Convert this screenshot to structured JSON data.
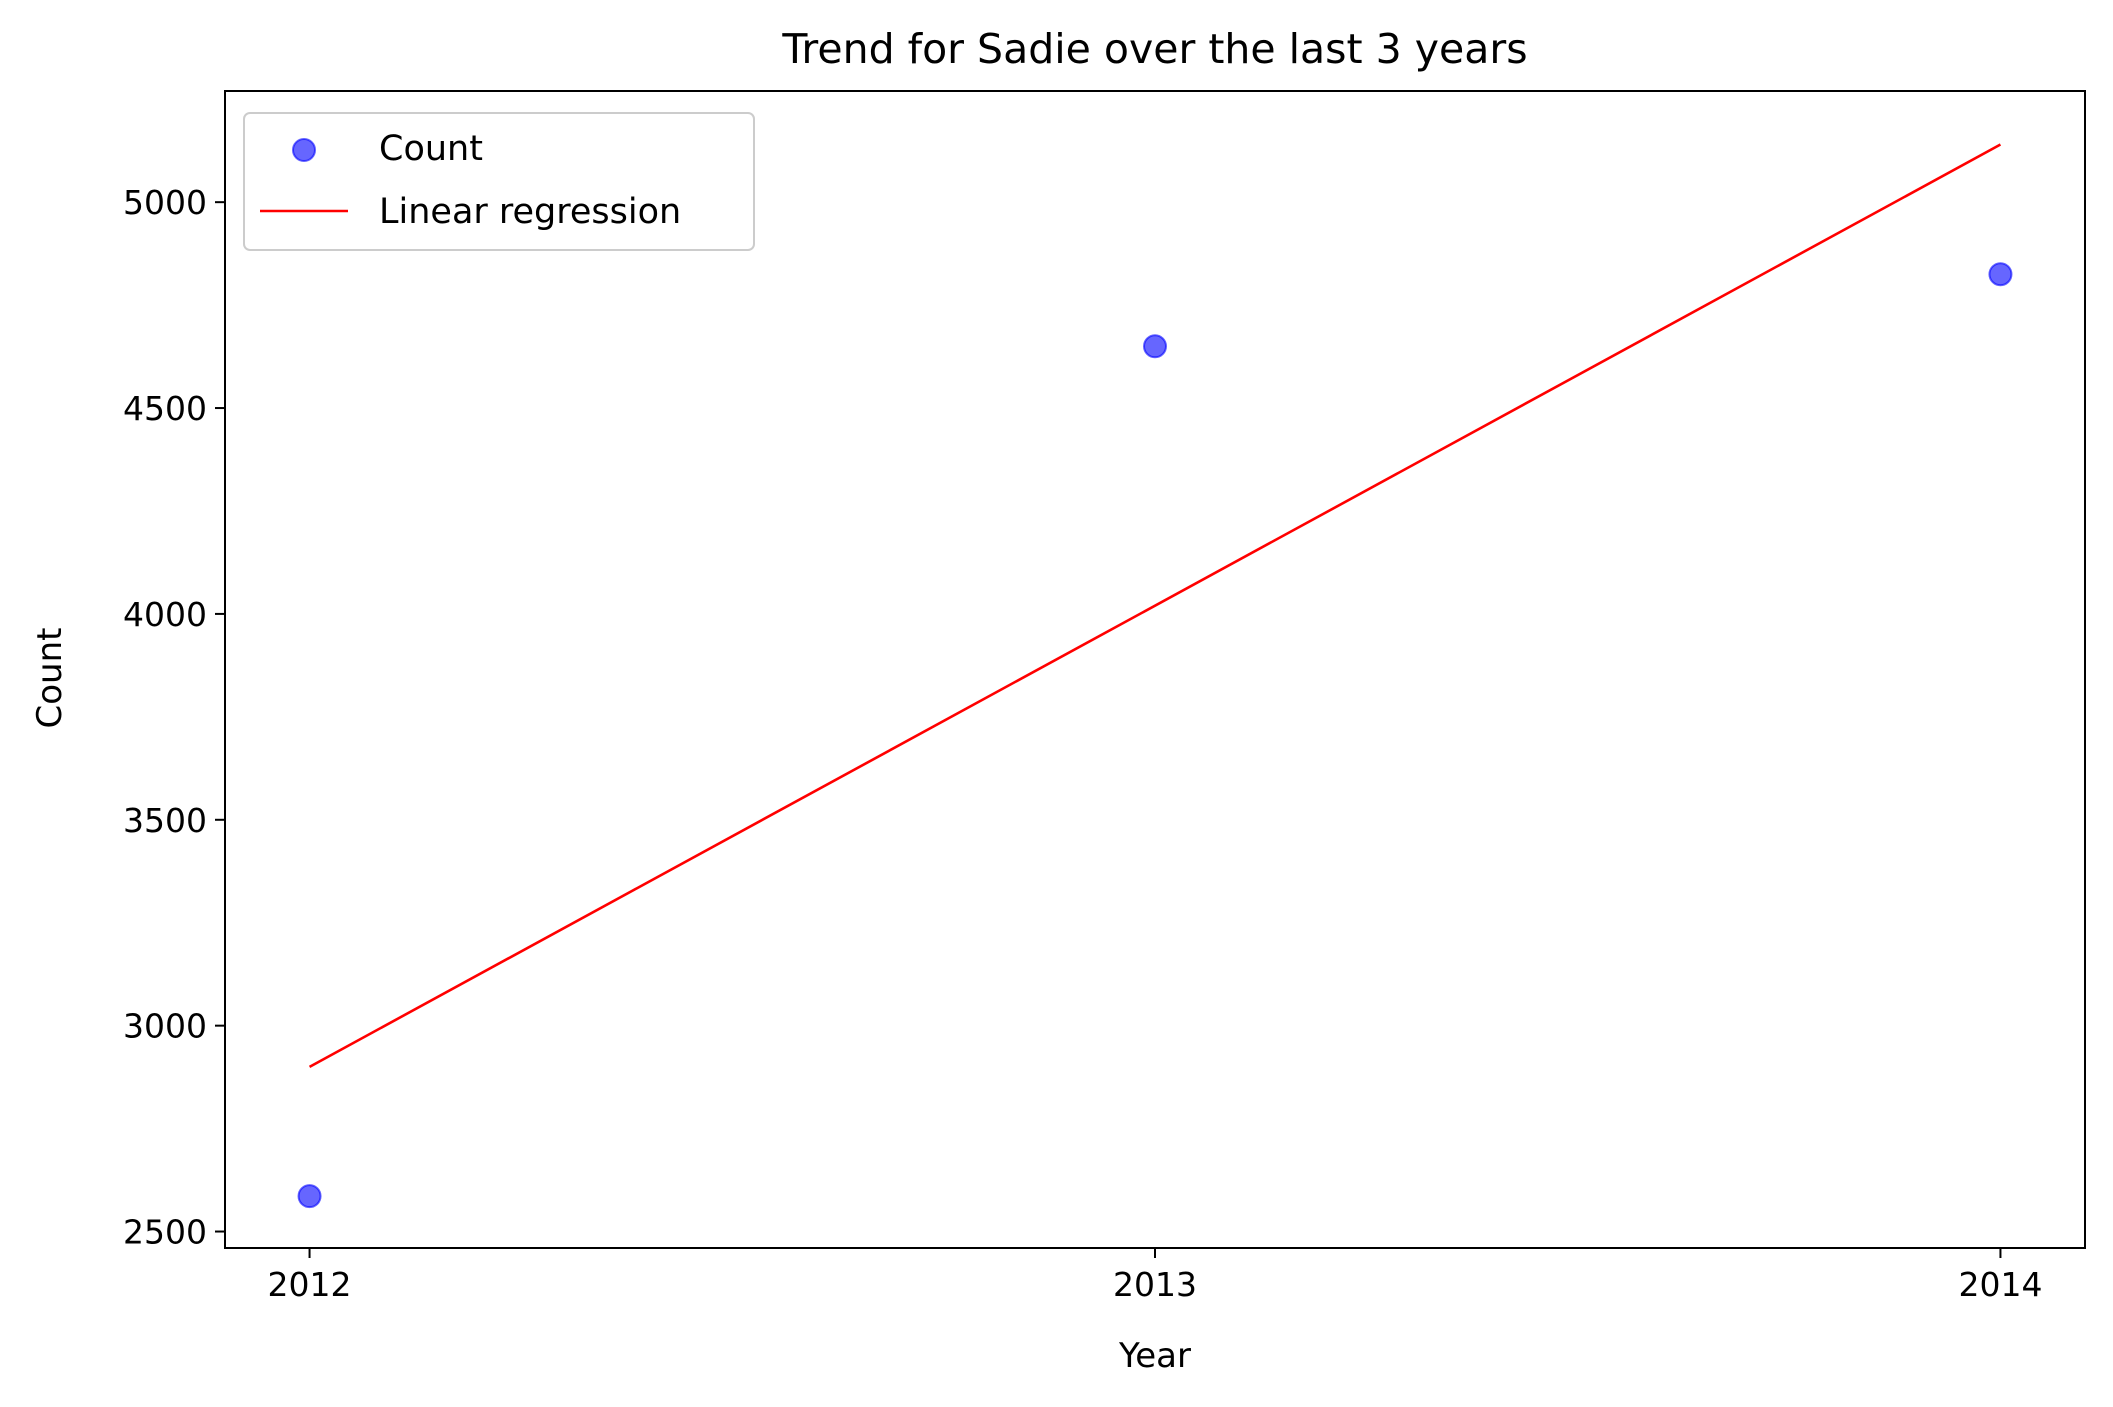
{
  "chart_data": {
    "type": "scatter",
    "title": "Trend for Sadie over the last 3 years",
    "xlabel": "Year",
    "ylabel": "Count",
    "xlim": [
      2011.9,
      2014.1
    ],
    "ylim": [
      2460,
      5270
    ],
    "x_ticks": [
      2012,
      2013,
      2014
    ],
    "x_tick_labels": [
      "2012",
      "2013",
      "2014"
    ],
    "y_ticks": [
      2500,
      3000,
      3500,
      4000,
      4500,
      5000
    ],
    "y_tick_labels": [
      "2500",
      "3000",
      "3500",
      "4000",
      "4500",
      "5000"
    ],
    "grid": false,
    "legend_position": "top-left",
    "series": [
      {
        "name": "Count",
        "kind": "scatter",
        "color": "#0000ff",
        "x": [
          2012,
          2013,
          2014
        ],
        "y": [
          2586,
          4650,
          4825
        ]
      },
      {
        "name": "Linear regression",
        "kind": "line",
        "color": "#ff0000",
        "x": [
          2012,
          2014
        ],
        "y": [
          2900,
          5140
        ]
      }
    ],
    "legend": [
      {
        "label": "Count",
        "marker": "circle",
        "color": "#0000ff"
      },
      {
        "label": "Linear regression",
        "marker": "line",
        "color": "#ff0000"
      }
    ]
  }
}
